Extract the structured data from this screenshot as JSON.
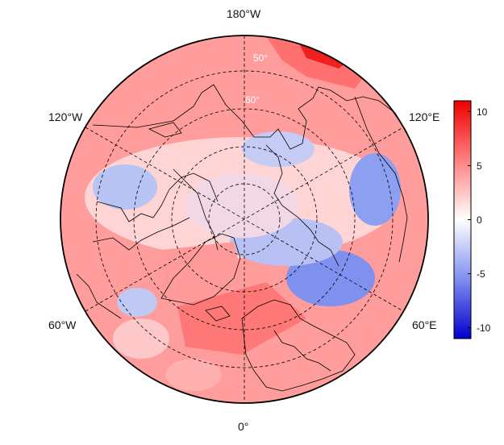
{
  "map": {
    "projection": "north-polar-stereographic",
    "longitude_labels": [
      {
        "key": "top",
        "text": "180°W"
      },
      {
        "key": "upper-left",
        "text": "120°W"
      },
      {
        "key": "upper-right",
        "text": "120°E"
      },
      {
        "key": "lower-left",
        "text": "60°W"
      },
      {
        "key": "lower-right",
        "text": "60°E"
      },
      {
        "key": "bottom",
        "text": "0°"
      }
    ],
    "latitude_labels": [
      "50°",
      "60°"
    ],
    "colors": {
      "strong_positive": "#ee1111",
      "positive": "#ff8080",
      "neutral": "#f4f4ff",
      "negative": "#8c9ff0",
      "strong_negative": "#0000cc"
    }
  },
  "colorbar": {
    "min": -11,
    "max": 11,
    "ticks": [
      "10",
      "5",
      "0",
      "-5",
      "-10"
    ],
    "tick_values": [
      10,
      5,
      0,
      -5,
      -10
    ]
  }
}
